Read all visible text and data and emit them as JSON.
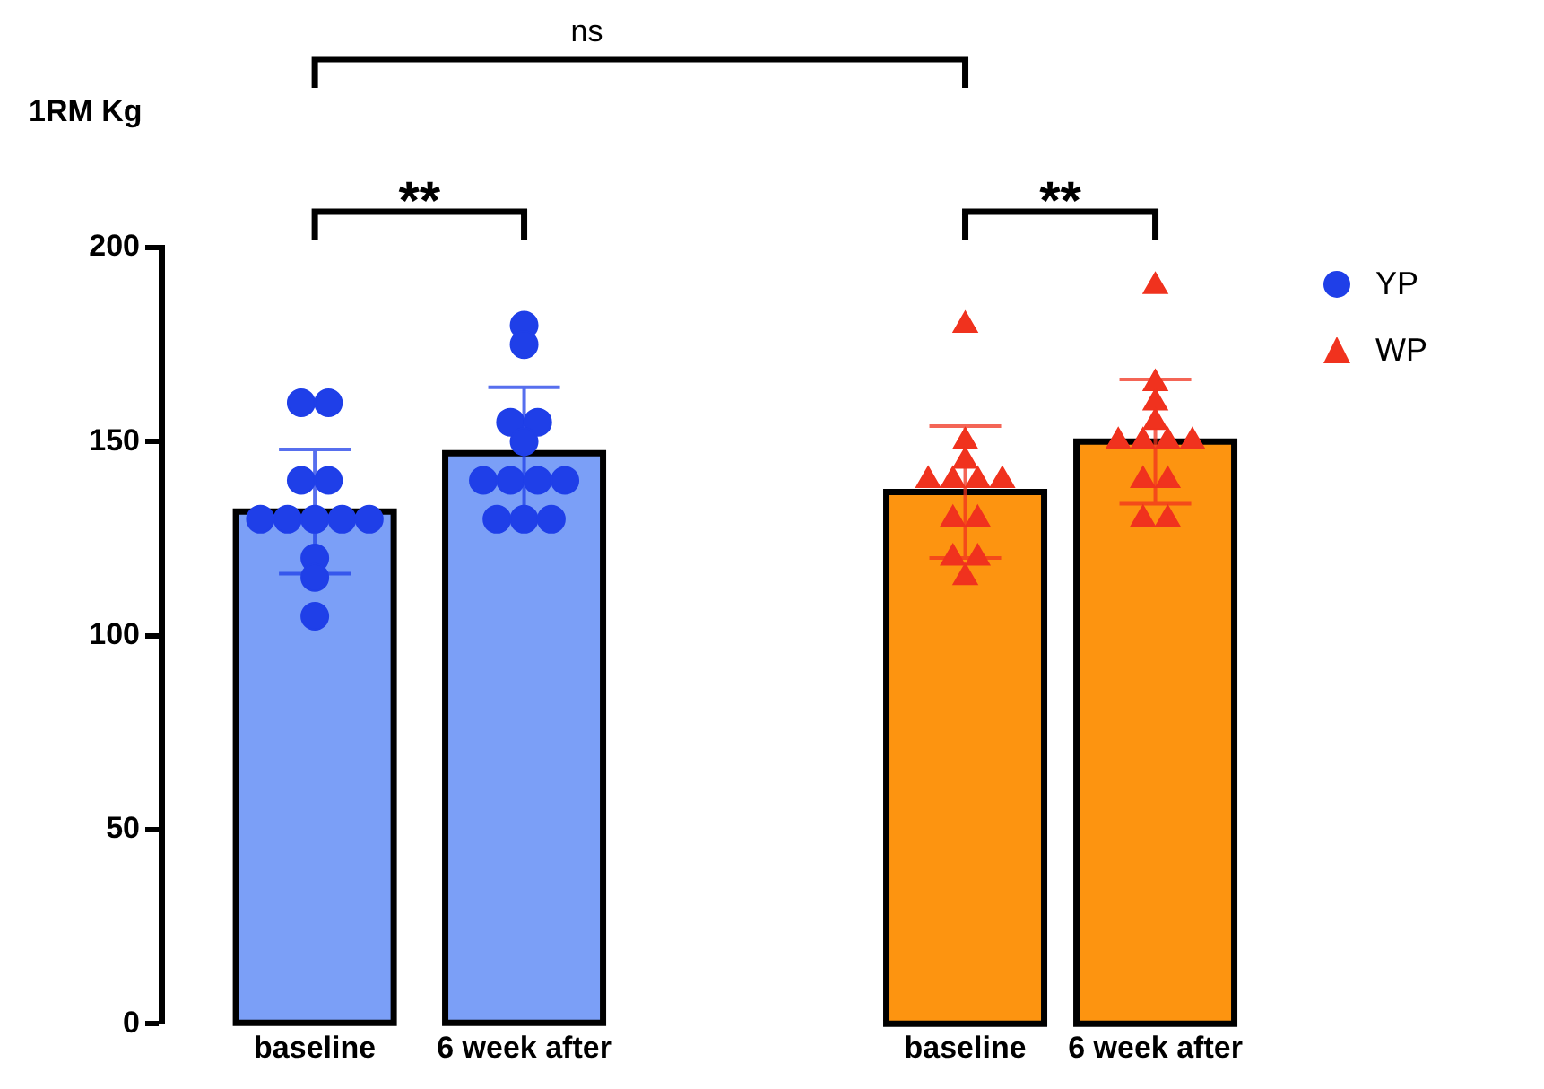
{
  "chart_data": [
    {
      "type": "bar",
      "ylabel": "1RM Kg",
      "categories": [
        "baseline",
        "6 week after"
      ],
      "values": [
        132,
        147
      ],
      "errors": [
        16,
        17
      ],
      "colors": [
        "#7b9ff7",
        "#7b9ff7"
      ],
      "series": [
        {
          "name": "YP",
          "type": "scatter",
          "marker": "circle",
          "color": "#1f3fe8",
          "x": [
            "baseline",
            "baseline",
            "baseline",
            "baseline",
            "baseline",
            "baseline",
            "baseline",
            "baseline",
            "baseline",
            "baseline",
            "baseline",
            "baseline",
            "6 week after",
            "6 week after",
            "6 week after",
            "6 week after",
            "6 week after",
            "6 week after",
            "6 week after",
            "6 week after",
            "6 week after",
            "6 week after",
            "6 week after",
            "6 week after"
          ],
          "values": [
            160,
            160,
            140,
            140,
            130,
            130,
            130,
            130,
            130,
            120,
            115,
            105,
            180,
            175,
            155,
            155,
            150,
            140,
            140,
            140,
            140,
            130,
            130,
            130
          ]
        }
      ],
      "ylim": [
        0,
        200
      ],
      "yticks": [
        0,
        50,
        100,
        150,
        200
      ],
      "grid": false,
      "legend": "top right",
      "annotations": [
        "ns",
        "**"
      ]
    },
    {
      "type": "bar",
      "categories": [
        "baseline",
        "6 week after"
      ],
      "values": [
        137,
        150
      ],
      "errors": [
        17,
        16
      ],
      "colors": [
        "#fd9410",
        "#fd9410"
      ],
      "series": [
        {
          "name": "WP",
          "type": "scatter",
          "marker": "triangle",
          "color": "#f0321e",
          "x": [
            "baseline",
            "baseline",
            "baseline",
            "baseline",
            "baseline",
            "baseline",
            "baseline",
            "baseline",
            "baseline",
            "baseline",
            "baseline",
            "baseline",
            "6 week after",
            "6 week after",
            "6 week after",
            "6 week after",
            "6 week after",
            "6 week after",
            "6 week after",
            "6 week after",
            "6 week after",
            "6 week after",
            "6 week after",
            "6 week after"
          ],
          "values": [
            180,
            150,
            145,
            140,
            140,
            140,
            140,
            130,
            130,
            120,
            120,
            115,
            190,
            165,
            160,
            155,
            150,
            150,
            150,
            150,
            140,
            140,
            130,
            130
          ]
        }
      ],
      "ylim": [
        0,
        200
      ],
      "yticks": [
        0,
        50,
        100,
        150,
        200
      ],
      "tick_labels": "x",
      "grid": false,
      "legend": "top right",
      "annotations": [
        "**"
      ]
    }
  ]
}
